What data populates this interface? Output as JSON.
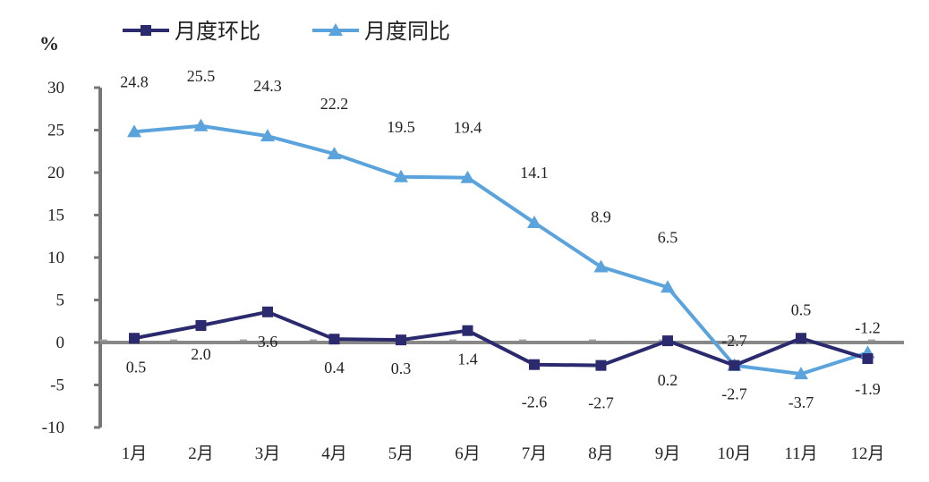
{
  "chart_data": {
    "type": "line",
    "unit": "%",
    "categories": [
      "1月",
      "2月",
      "3月",
      "4月",
      "5月",
      "6月",
      "7月",
      "8月",
      "9月",
      "10月",
      "11月",
      "12月"
    ],
    "ylim": [
      -10,
      30
    ],
    "yticks": [
      30,
      25,
      20,
      15,
      10,
      5,
      0,
      -5,
      -10
    ],
    "legend_position": "top-left",
    "grid": false,
    "series": [
      {
        "name": "月度环比",
        "color": "#2c2a6e",
        "marker": "square",
        "values": [
          0.5,
          2.0,
          3.6,
          0.4,
          0.3,
          1.4,
          -2.6,
          -2.7,
          0.2,
          -2.7,
          0.5,
          -1.9
        ]
      },
      {
        "name": "月度同比",
        "color": "#5aa3dd",
        "marker": "triangle",
        "values": [
          24.8,
          25.5,
          24.3,
          22.2,
          19.5,
          19.4,
          14.1,
          8.9,
          6.5,
          -2.7,
          -3.7,
          -1.2
        ]
      }
    ],
    "data_labels": [
      {
        "text": "24.8",
        "series": 1,
        "index": 0
      },
      {
        "text": "25.5",
        "series": 1,
        "index": 1
      },
      {
        "text": "24.3",
        "series": 1,
        "index": 2
      },
      {
        "text": "22.2",
        "series": 1,
        "index": 3
      },
      {
        "text": "19.5",
        "series": 1,
        "index": 4
      },
      {
        "text": "19.4",
        "series": 1,
        "index": 5
      },
      {
        "text": "14.1",
        "series": 1,
        "index": 6
      },
      {
        "text": "8.9",
        "series": 1,
        "index": 7
      },
      {
        "text": "6.5",
        "series": 1,
        "index": 8
      },
      {
        "text": "-2.7",
        "series": 1,
        "index": 9
      },
      {
        "text": "-3.7",
        "series": 1,
        "index": 10
      },
      {
        "text": "-1.2",
        "series": 1,
        "index": 11
      },
      {
        "text": "0.5",
        "series": 0,
        "index": 0
      },
      {
        "text": "2.0",
        "series": 0,
        "index": 1
      },
      {
        "text": "3.6",
        "series": 0,
        "index": 2
      },
      {
        "text": "0.4",
        "series": 0,
        "index": 3
      },
      {
        "text": "0.3",
        "series": 0,
        "index": 4
      },
      {
        "text": "1.4",
        "series": 0,
        "index": 5
      },
      {
        "text": "-2.6",
        "series": 0,
        "index": 6
      },
      {
        "text": "-2.7",
        "series": 0,
        "index": 7
      },
      {
        "text": "0.2",
        "series": 0,
        "index": 8
      },
      {
        "text": "-2.7",
        "series": 0,
        "index": 9
      },
      {
        "text": "0.5",
        "series": 0,
        "index": 10
      },
      {
        "text": "-1.9",
        "series": 0,
        "index": 11
      }
    ]
  }
}
